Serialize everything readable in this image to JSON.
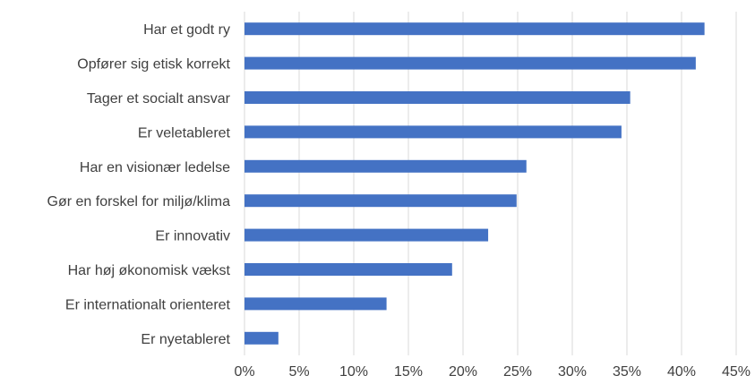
{
  "chart_data": {
    "type": "bar",
    "orientation": "horizontal",
    "categories": [
      "Har et godt ry",
      "Opfører sig etisk korrekt",
      "Tager et socialt ansvar",
      "Er veletableret",
      "Har en visionær ledelse",
      "Gør en forskel for miljø/klima",
      "Er innovativ",
      "Har høj økonomisk vækst",
      "Er internationalt orienteret",
      "Er nyetableret"
    ],
    "values": [
      42.1,
      41.3,
      35.3,
      34.5,
      25.8,
      24.9,
      22.3,
      19.0,
      13.0,
      3.1
    ],
    "x_ticks": [
      "0%",
      "5%",
      "10%",
      "15%",
      "20%",
      "25%",
      "30%",
      "35%",
      "40%",
      "45%"
    ],
    "xlim": [
      0,
      45
    ],
    "grid": true,
    "bar_color": "#4472c4"
  }
}
